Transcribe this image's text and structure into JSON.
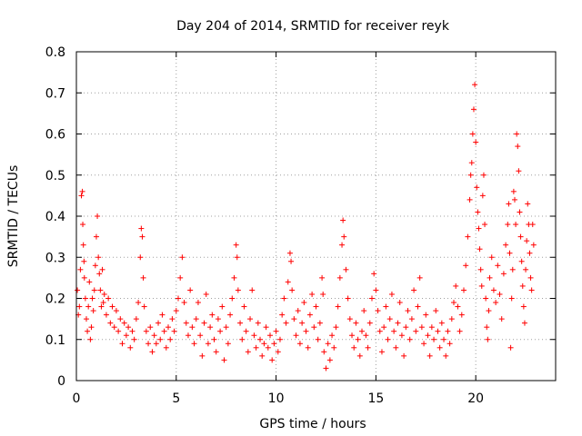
{
  "chart_data": {
    "type": "scatter",
    "title": "Day 204 of 2014, SRMTID for receiver reyk",
    "xlabel": "GPS time / hours",
    "ylabel": "SRMTID / TECUs",
    "xlim": [
      0,
      24
    ],
    "ylim": [
      0,
      0.8
    ],
    "xticks": [
      0,
      5,
      10,
      15,
      20
    ],
    "xtick_labels": [
      "0",
      "5",
      "10",
      "15",
      "20"
    ],
    "yticks": [
      0,
      0.1,
      0.2,
      0.3,
      0.4,
      0.5,
      0.6,
      0.7,
      0.8
    ],
    "ytick_labels": [
      "0",
      "0.1",
      "0.2",
      "0.3",
      "0.4",
      "0.5",
      "0.6",
      "0.7",
      "0.8"
    ],
    "grid": true,
    "marker": "+",
    "color": "#ff0000",
    "series": [
      {
        "name": "SRMTID",
        "points": [
          [
            0.05,
            0.22
          ],
          [
            0.1,
            0.16
          ],
          [
            0.15,
            0.18
          ],
          [
            0.2,
            0.27
          ],
          [
            0.25,
            0.45
          ],
          [
            0.3,
            0.46
          ],
          [
            0.32,
            0.38
          ],
          [
            0.35,
            0.33
          ],
          [
            0.38,
            0.29
          ],
          [
            0.4,
            0.25
          ],
          [
            0.45,
            0.2
          ],
          [
            0.5,
            0.15
          ],
          [
            0.55,
            0.12
          ],
          [
            0.6,
            0.18
          ],
          [
            0.65,
            0.24
          ],
          [
            0.7,
            0.1
          ],
          [
            0.75,
            0.13
          ],
          [
            0.8,
            0.2
          ],
          [
            0.85,
            0.17
          ],
          [
            0.9,
            0.22
          ],
          [
            0.95,
            0.28
          ],
          [
            1.0,
            0.35
          ],
          [
            1.05,
            0.4
          ],
          [
            1.1,
            0.3
          ],
          [
            1.15,
            0.26
          ],
          [
            1.2,
            0.22
          ],
          [
            1.25,
            0.18
          ],
          [
            1.3,
            0.27
          ],
          [
            1.35,
            0.19
          ],
          [
            1.4,
            0.21
          ],
          [
            1.5,
            0.16
          ],
          [
            1.6,
            0.2
          ],
          [
            1.7,
            0.14
          ],
          [
            1.8,
            0.18
          ],
          [
            1.9,
            0.13
          ],
          [
            2.0,
            0.17
          ],
          [
            2.1,
            0.12
          ],
          [
            2.2,
            0.15
          ],
          [
            2.3,
            0.09
          ],
          [
            2.4,
            0.14
          ],
          [
            2.5,
            0.11
          ],
          [
            2.6,
            0.13
          ],
          [
            2.7,
            0.08
          ],
          [
            2.8,
            0.12
          ],
          [
            2.9,
            0.1
          ],
          [
            3.0,
            0.15
          ],
          [
            3.1,
            0.19
          ],
          [
            3.2,
            0.3
          ],
          [
            3.25,
            0.37
          ],
          [
            3.3,
            0.35
          ],
          [
            3.35,
            0.25
          ],
          [
            3.4,
            0.18
          ],
          [
            3.5,
            0.12
          ],
          [
            3.6,
            0.09
          ],
          [
            3.7,
            0.13
          ],
          [
            3.8,
            0.07
          ],
          [
            3.9,
            0.11
          ],
          [
            4.0,
            0.09
          ],
          [
            4.1,
            0.14
          ],
          [
            4.2,
            0.1
          ],
          [
            4.3,
            0.16
          ],
          [
            4.4,
            0.12
          ],
          [
            4.5,
            0.08
          ],
          [
            4.6,
            0.13
          ],
          [
            4.7,
            0.1
          ],
          [
            4.8,
            0.15
          ],
          [
            4.9,
            0.12
          ],
          [
            5.0,
            0.17
          ],
          [
            5.1,
            0.2
          ],
          [
            5.2,
            0.25
          ],
          [
            5.3,
            0.3
          ],
          [
            5.4,
            0.19
          ],
          [
            5.5,
            0.14
          ],
          [
            5.6,
            0.11
          ],
          [
            5.7,
            0.22
          ],
          [
            5.8,
            0.13
          ],
          [
            5.9,
            0.09
          ],
          [
            6.0,
            0.15
          ],
          [
            6.1,
            0.19
          ],
          [
            6.2,
            0.11
          ],
          [
            6.3,
            0.06
          ],
          [
            6.4,
            0.14
          ],
          [
            6.5,
            0.21
          ],
          [
            6.6,
            0.09
          ],
          [
            6.7,
            0.13
          ],
          [
            6.8,
            0.16
          ],
          [
            6.9,
            0.1
          ],
          [
            7.0,
            0.07
          ],
          [
            7.1,
            0.15
          ],
          [
            7.2,
            0.12
          ],
          [
            7.3,
            0.18
          ],
          [
            7.4,
            0.05
          ],
          [
            7.5,
            0.13
          ],
          [
            7.6,
            0.09
          ],
          [
            7.7,
            0.16
          ],
          [
            7.8,
            0.2
          ],
          [
            7.9,
            0.25
          ],
          [
            8.0,
            0.33
          ],
          [
            8.05,
            0.3
          ],
          [
            8.1,
            0.22
          ],
          [
            8.2,
            0.14
          ],
          [
            8.3,
            0.1
          ],
          [
            8.4,
            0.18
          ],
          [
            8.5,
            0.12
          ],
          [
            8.6,
            0.07
          ],
          [
            8.7,
            0.15
          ],
          [
            8.8,
            0.22
          ],
          [
            8.9,
            0.11
          ],
          [
            9.0,
            0.08
          ],
          [
            9.1,
            0.14
          ],
          [
            9.2,
            0.1
          ],
          [
            9.3,
            0.06
          ],
          [
            9.4,
            0.09
          ],
          [
            9.5,
            0.13
          ],
          [
            9.6,
            0.08
          ],
          [
            9.7,
            0.11
          ],
          [
            9.8,
            0.05
          ],
          [
            9.9,
            0.09
          ],
          [
            10.0,
            0.12
          ],
          [
            10.1,
            0.07
          ],
          [
            10.2,
            0.1
          ],
          [
            10.3,
            0.16
          ],
          [
            10.4,
            0.2
          ],
          [
            10.5,
            0.14
          ],
          [
            10.6,
            0.24
          ],
          [
            10.7,
            0.31
          ],
          [
            10.75,
            0.29
          ],
          [
            10.8,
            0.22
          ],
          [
            10.9,
            0.15
          ],
          [
            11.0,
            0.11
          ],
          [
            11.1,
            0.17
          ],
          [
            11.2,
            0.09
          ],
          [
            11.3,
            0.14
          ],
          [
            11.4,
            0.19
          ],
          [
            11.5,
            0.12
          ],
          [
            11.6,
            0.08
          ],
          [
            11.7,
            0.16
          ],
          [
            11.8,
            0.21
          ],
          [
            11.9,
            0.13
          ],
          [
            12.0,
            0.18
          ],
          [
            12.1,
            0.1
          ],
          [
            12.2,
            0.14
          ],
          [
            12.3,
            0.25
          ],
          [
            12.35,
            0.21
          ],
          [
            12.4,
            0.07
          ],
          [
            12.5,
            0.03
          ],
          [
            12.6,
            0.09
          ],
          [
            12.7,
            0.05
          ],
          [
            12.8,
            0.11
          ],
          [
            12.9,
            0.08
          ],
          [
            13.0,
            0.13
          ],
          [
            13.1,
            0.18
          ],
          [
            13.2,
            0.25
          ],
          [
            13.3,
            0.33
          ],
          [
            13.35,
            0.39
          ],
          [
            13.4,
            0.35
          ],
          [
            13.5,
            0.27
          ],
          [
            13.6,
            0.2
          ],
          [
            13.7,
            0.15
          ],
          [
            13.8,
            0.11
          ],
          [
            13.9,
            0.08
          ],
          [
            14.0,
            0.14
          ],
          [
            14.1,
            0.1
          ],
          [
            14.2,
            0.06
          ],
          [
            14.3,
            0.12
          ],
          [
            14.4,
            0.17
          ],
          [
            14.5,
            0.11
          ],
          [
            14.6,
            0.08
          ],
          [
            14.7,
            0.14
          ],
          [
            14.8,
            0.2
          ],
          [
            14.9,
            0.26
          ],
          [
            15.0,
            0.22
          ],
          [
            15.1,
            0.17
          ],
          [
            15.2,
            0.12
          ],
          [
            15.3,
            0.07
          ],
          [
            15.4,
            0.13
          ],
          [
            15.5,
            0.18
          ],
          [
            15.6,
            0.1
          ],
          [
            15.7,
            0.15
          ],
          [
            15.8,
            0.21
          ],
          [
            15.9,
            0.12
          ],
          [
            16.0,
            0.08
          ],
          [
            16.1,
            0.14
          ],
          [
            16.2,
            0.19
          ],
          [
            16.3,
            0.11
          ],
          [
            16.4,
            0.06
          ],
          [
            16.5,
            0.13
          ],
          [
            16.6,
            0.17
          ],
          [
            16.7,
            0.1
          ],
          [
            16.8,
            0.15
          ],
          [
            16.9,
            0.22
          ],
          [
            17.0,
            0.12
          ],
          [
            17.1,
            0.18
          ],
          [
            17.2,
            0.25
          ],
          [
            17.3,
            0.13
          ],
          [
            17.4,
            0.09
          ],
          [
            17.5,
            0.16
          ],
          [
            17.6,
            0.11
          ],
          [
            17.7,
            0.06
          ],
          [
            17.8,
            0.13
          ],
          [
            17.9,
            0.1
          ],
          [
            18.0,
            0.17
          ],
          [
            18.1,
            0.12
          ],
          [
            18.2,
            0.08
          ],
          [
            18.3,
            0.14
          ],
          [
            18.4,
            0.1
          ],
          [
            18.5,
            0.06
          ],
          [
            18.6,
            0.12
          ],
          [
            18.7,
            0.09
          ],
          [
            18.8,
            0.15
          ],
          [
            18.9,
            0.19
          ],
          [
            19.0,
            0.23
          ],
          [
            19.1,
            0.18
          ],
          [
            19.2,
            0.12
          ],
          [
            19.3,
            0.16
          ],
          [
            19.4,
            0.22
          ],
          [
            19.5,
            0.28
          ],
          [
            19.6,
            0.35
          ],
          [
            19.7,
            0.44
          ],
          [
            19.75,
            0.5
          ],
          [
            19.8,
            0.53
          ],
          [
            19.85,
            0.6
          ],
          [
            19.9,
            0.66
          ],
          [
            19.95,
            0.72
          ],
          [
            20.0,
            0.58
          ],
          [
            20.05,
            0.47
          ],
          [
            20.1,
            0.41
          ],
          [
            20.15,
            0.37
          ],
          [
            20.2,
            0.32
          ],
          [
            20.25,
            0.27
          ],
          [
            20.3,
            0.23
          ],
          [
            20.35,
            0.45
          ],
          [
            20.4,
            0.5
          ],
          [
            20.45,
            0.38
          ],
          [
            20.5,
            0.2
          ],
          [
            20.55,
            0.13
          ],
          [
            20.6,
            0.1
          ],
          [
            20.65,
            0.17
          ],
          [
            20.7,
            0.25
          ],
          [
            20.8,
            0.3
          ],
          [
            20.9,
            0.22
          ],
          [
            21.0,
            0.19
          ],
          [
            21.1,
            0.28
          ],
          [
            21.2,
            0.21
          ],
          [
            21.3,
            0.15
          ],
          [
            21.4,
            0.26
          ],
          [
            21.5,
            0.33
          ],
          [
            21.6,
            0.38
          ],
          [
            21.65,
            0.43
          ],
          [
            21.7,
            0.31
          ],
          [
            21.75,
            0.08
          ],
          [
            21.8,
            0.2
          ],
          [
            21.85,
            0.27
          ],
          [
            21.9,
            0.46
          ],
          [
            21.95,
            0.44
          ],
          [
            22.0,
            0.38
          ],
          [
            22.05,
            0.6
          ],
          [
            22.1,
            0.57
          ],
          [
            22.15,
            0.51
          ],
          [
            22.2,
            0.41
          ],
          [
            22.25,
            0.35
          ],
          [
            22.3,
            0.29
          ],
          [
            22.35,
            0.23
          ],
          [
            22.4,
            0.18
          ],
          [
            22.45,
            0.14
          ],
          [
            22.5,
            0.27
          ],
          [
            22.55,
            0.34
          ],
          [
            22.6,
            0.43
          ],
          [
            22.65,
            0.38
          ],
          [
            22.7,
            0.31
          ],
          [
            22.75,
            0.25
          ],
          [
            22.8,
            0.22
          ],
          [
            22.85,
            0.38
          ],
          [
            22.9,
            0.33
          ]
        ]
      }
    ]
  }
}
